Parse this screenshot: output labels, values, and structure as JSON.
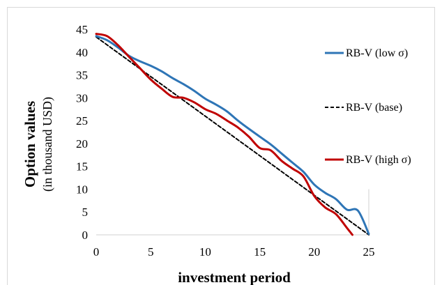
{
  "chart_data": {
    "type": "line",
    "xlabel": "investment period",
    "ylabel": "Option values",
    "ylabel_sub": "(in thousand USD)",
    "xlim": [
      0,
      25
    ],
    "ylim": [
      0,
      45
    ],
    "xticks": [
      "0",
      "5",
      "10",
      "15",
      "20",
      "25"
    ],
    "yticks": [
      "0",
      "5",
      "10",
      "15",
      "20",
      "25",
      "30",
      "35",
      "40",
      "45"
    ],
    "grid": false,
    "legend_position": "right",
    "series": [
      {
        "name": "RB-V (low σ)",
        "color": "#2E75B6",
        "dash": "solid",
        "x": [
          0,
          1,
          2,
          3,
          4,
          5,
          6,
          7,
          8,
          9,
          10,
          11,
          12,
          13,
          14,
          15,
          16,
          17,
          18,
          19,
          20,
          21,
          22,
          23,
          24,
          25
        ],
        "y": [
          43.5,
          42.6,
          41.0,
          39.2,
          38.0,
          37.0,
          35.8,
          34.3,
          33.0,
          31.5,
          29.8,
          28.5,
          27.0,
          25.0,
          23.2,
          21.5,
          19.8,
          17.8,
          15.8,
          13.8,
          11.0,
          9.2,
          7.8,
          5.5,
          5.3,
          0.2
        ]
      },
      {
        "name": "RB-V (base)",
        "color": "#000000",
        "dash": "dashed",
        "x": [
          0,
          25
        ],
        "y": [
          43.3,
          0
        ]
      },
      {
        "name": "RB-V (high σ)",
        "color": "#C00000",
        "dash": "solid",
        "x": [
          0,
          1,
          2,
          3,
          4,
          5,
          6,
          7,
          8,
          9,
          10,
          11,
          12,
          13,
          14,
          15,
          16,
          17,
          18,
          19,
          20,
          21,
          22,
          23,
          23.5
        ],
        "y": [
          44.0,
          43.5,
          41.5,
          39.0,
          36.5,
          34.0,
          32.0,
          30.2,
          30.0,
          29.0,
          27.5,
          26.5,
          25.0,
          23.5,
          21.5,
          19.0,
          18.5,
          16.2,
          14.5,
          12.8,
          8.5,
          6.0,
          4.5,
          1.5,
          0.0
        ]
      }
    ]
  }
}
